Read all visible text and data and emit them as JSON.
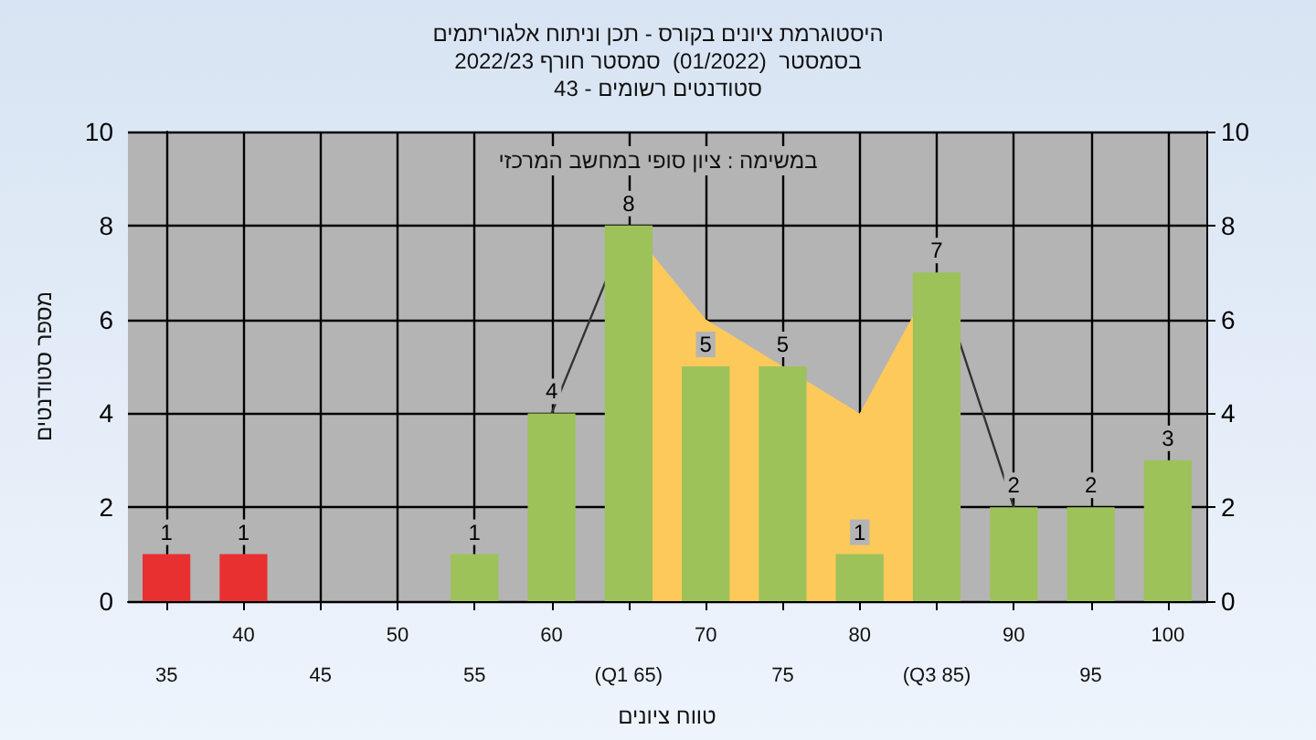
{
  "chart_data": {
    "type": "bar",
    "title": "היסטוגרמת ציונים בקורס - תכן וניתוח אלגוריתמים",
    "subtitle": "בסמסטר  (01/2022)  סמסטר חורף 2022/23\nסטודנטים רשומים - 43",
    "xlabel": "טווח ציונים",
    "ylabel": "מספר סטודנטים",
    "annotations": [
      "במשימה : ציון סופי במחשב המרכזי"
    ],
    "categories": [
      "35",
      "40",
      "45",
      "50",
      "55",
      "60",
      "(Q1 65)",
      "70",
      "75",
      "80",
      "(Q3 85)",
      "90",
      "95",
      "100"
    ],
    "series": [
      {
        "type": "area",
        "color": "#fdc95a",
        "values": [
          null,
          null,
          null,
          null,
          null,
          null,
          8,
          6,
          null,
          4,
          7,
          null,
          null,
          null
        ]
      },
      {
        "type": "line",
        "color": "#333333",
        "values": [
          null,
          null,
          null,
          null,
          null,
          4,
          8,
          null,
          null,
          null,
          7,
          2,
          null,
          null
        ]
      },
      {
        "values": [
          1,
          1,
          0,
          0,
          1,
          4,
          8,
          5,
          5,
          1,
          7,
          2,
          2,
          3
        ],
        "colors": [
          "#e83030",
          "#e83030",
          "#9dc25a",
          "#9dc25a",
          "#9dc25a",
          "#9dc25a",
          "#9dc25a",
          "#9dc25a",
          "#9dc25a",
          "#9dc25a",
          "#9dc25a",
          "#9dc25a",
          "#9dc25a",
          "#9dc25a"
        ],
        "value_labels": [
          "1",
          "1",
          null,
          null,
          "1",
          "4",
          "8",
          "5",
          "5",
          "1",
          "7",
          "2",
          "2",
          "3"
        ]
      }
    ],
    "ylim": [
      0,
      10
    ],
    "yticks": [
      0,
      2,
      4,
      6,
      8,
      10
    ],
    "y2lim": [
      0,
      10
    ],
    "y2ticks": [
      0,
      2,
      4,
      6,
      8,
      10
    ],
    "grid": true,
    "marker": "none"
  }
}
